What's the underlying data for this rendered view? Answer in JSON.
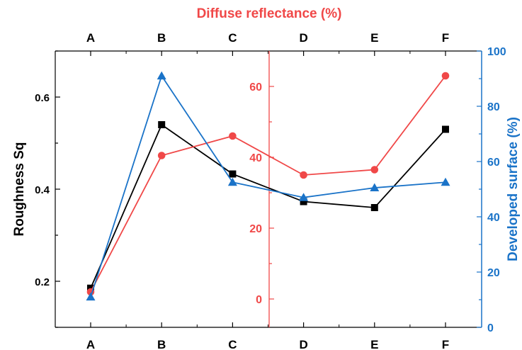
{
  "chart_data": {
    "type": "line",
    "categories": [
      "A",
      "B",
      "C",
      "D",
      "E",
      "F"
    ],
    "top_title": "Diffuse reflectance (%)",
    "axes": {
      "left": {
        "label": "Roughness Sq",
        "ylim": [
          0.1,
          0.7
        ],
        "ticks": [
          0.2,
          0.4,
          0.6
        ],
        "tick_labels": [
          "0.2",
          "0.4",
          "0.6"
        ],
        "color": "#000000"
      },
      "middle": {
        "label": "Diffuse reflectance (%)",
        "ylim": [
          -8,
          70
        ],
        "ticks": [
          0,
          20,
          40,
          60
        ],
        "tick_labels": [
          "0",
          "20",
          "40",
          "60"
        ],
        "color": "#f04848"
      },
      "right": {
        "label": "Developed surface (%)",
        "ylim": [
          0,
          100
        ],
        "ticks": [
          0,
          20,
          40,
          60,
          80,
          100
        ],
        "tick_labels": [
          "0",
          "20",
          "40",
          "60",
          "80",
          "100"
        ],
        "color": "#1a73c8"
      }
    },
    "series": [
      {
        "axis": "left",
        "color": "#000000",
        "marker": "square",
        "values": [
          0.185,
          0.54,
          0.433,
          0.373,
          0.36,
          0.53
        ]
      },
      {
        "axis": "middle",
        "color": "#f04848",
        "marker": "circle",
        "values": [
          2,
          40.5,
          46,
          35,
          36.5,
          63
        ]
      },
      {
        "axis": "right",
        "color": "#1a73c8",
        "marker": "triangle",
        "values": [
          11,
          91,
          52.5,
          47,
          50.5,
          52.5
        ]
      }
    ]
  }
}
